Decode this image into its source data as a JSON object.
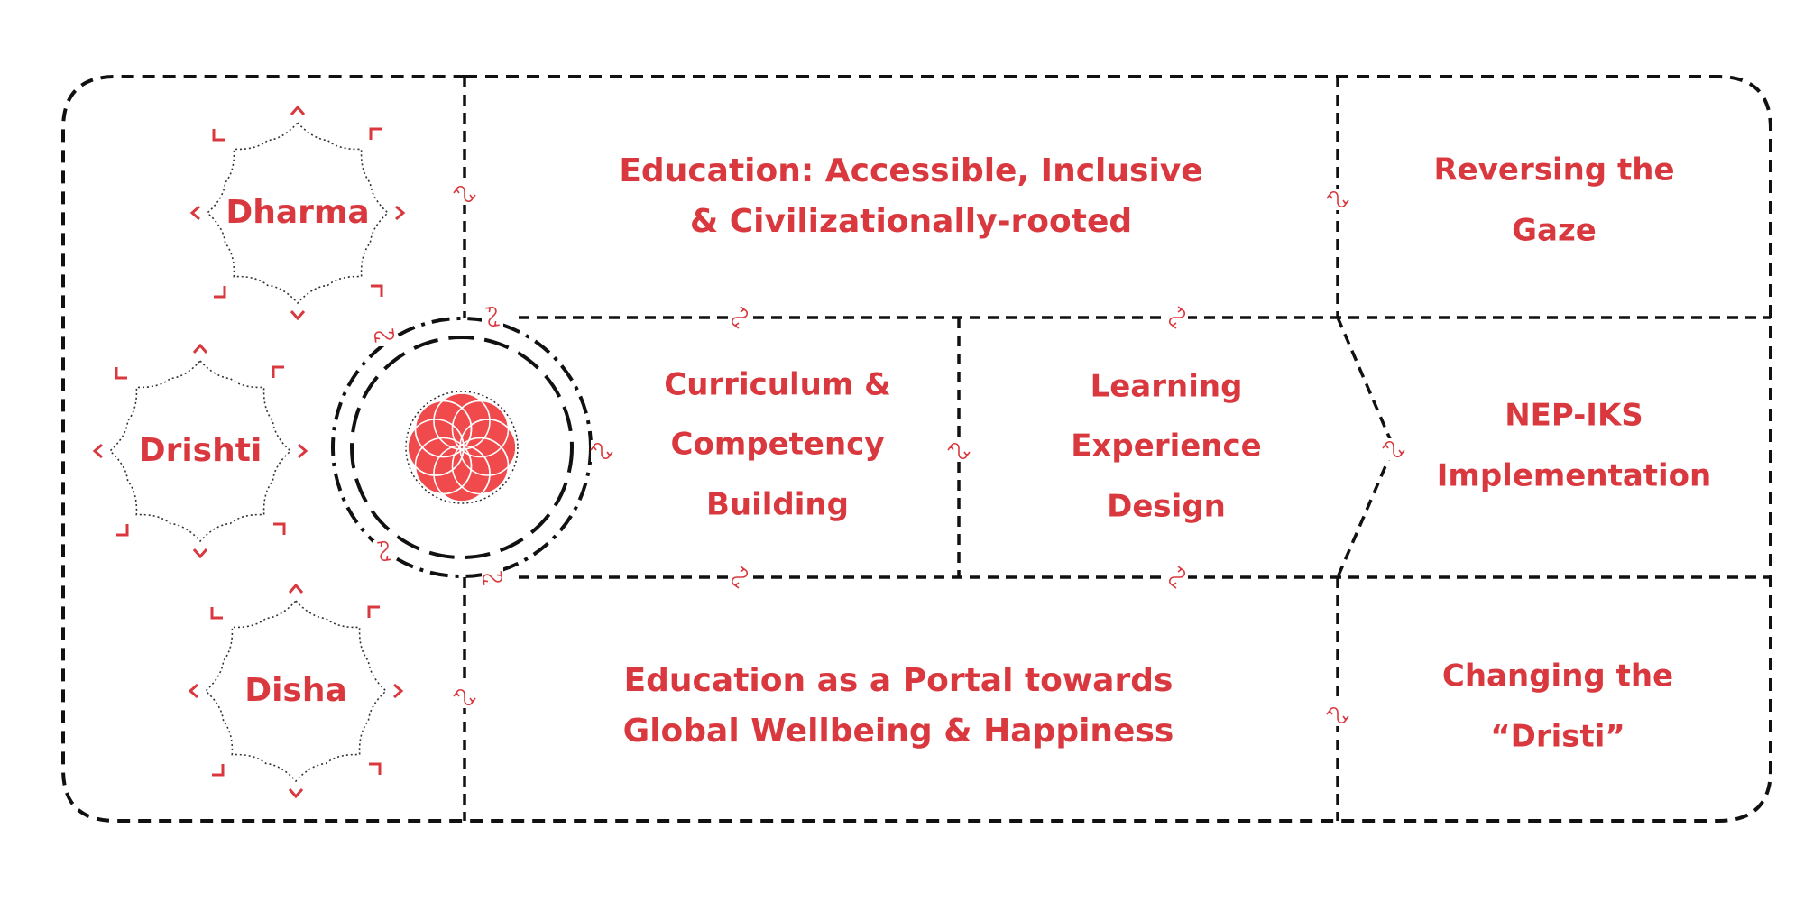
{
  "colors": {
    "accent": "#d9393e",
    "line": "#111111",
    "flower": "#f04a4c"
  },
  "seals": [
    {
      "name": "dharma",
      "label": "Dharma"
    },
    {
      "name": "drishti",
      "label": "Drishti"
    },
    {
      "name": "disha",
      "label": "Disha"
    }
  ],
  "center_icon": "lotus-flower-icon",
  "connector_icon": "swap-arrows-icon",
  "cells": {
    "education_top": {
      "line1": "Education: Accessible, Inclusive",
      "line2": "& Civilizationally-rooted"
    },
    "reversing": {
      "line1": "Reversing the",
      "line2": "Gaze"
    },
    "curriculum": {
      "line1": "Curriculum &",
      "line2": "Competency",
      "line3": "Building"
    },
    "learning": {
      "line1": "Learning",
      "line2": "Experience",
      "line3": "Design"
    },
    "nep": {
      "line1": "NEP-IKS",
      "line2": "Implementation"
    },
    "education_bottom": {
      "line1": "Education as a Portal towards",
      "line2": "Global Wellbeing & Happiness"
    },
    "changing": {
      "line1": "Changing the",
      "line2": "“Dristi”"
    }
  }
}
